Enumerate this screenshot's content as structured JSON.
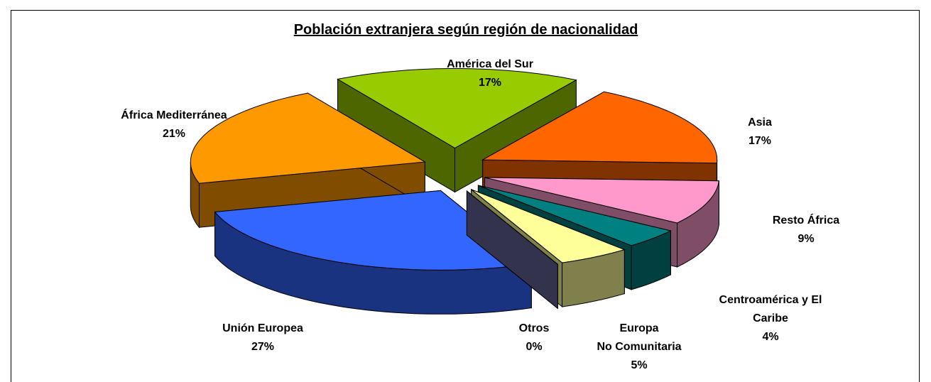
{
  "chart_data": {
    "type": "pie3d",
    "title": "Población extranjera según región de nacionalidad",
    "categories": [
      "América del Sur",
      "Asia",
      "Resto África",
      "Centroamérica y El\nCaribe",
      "Europa\nNo Comunitaria",
      "Otros",
      "Unión Europea",
      "África Mediterránea"
    ],
    "values": [
      17,
      17,
      9,
      4,
      5,
      0,
      27,
      21
    ],
    "value_labels": [
      "17%",
      "17%",
      "9%",
      "4%",
      "5%",
      "0%",
      "27%",
      "21%"
    ],
    "colors": [
      "#99cc00",
      "#ff6600",
      "#ff99cc",
      "#008080",
      "#ffff99",
      "#666699",
      "#3366ff",
      "#ff9900"
    ]
  }
}
